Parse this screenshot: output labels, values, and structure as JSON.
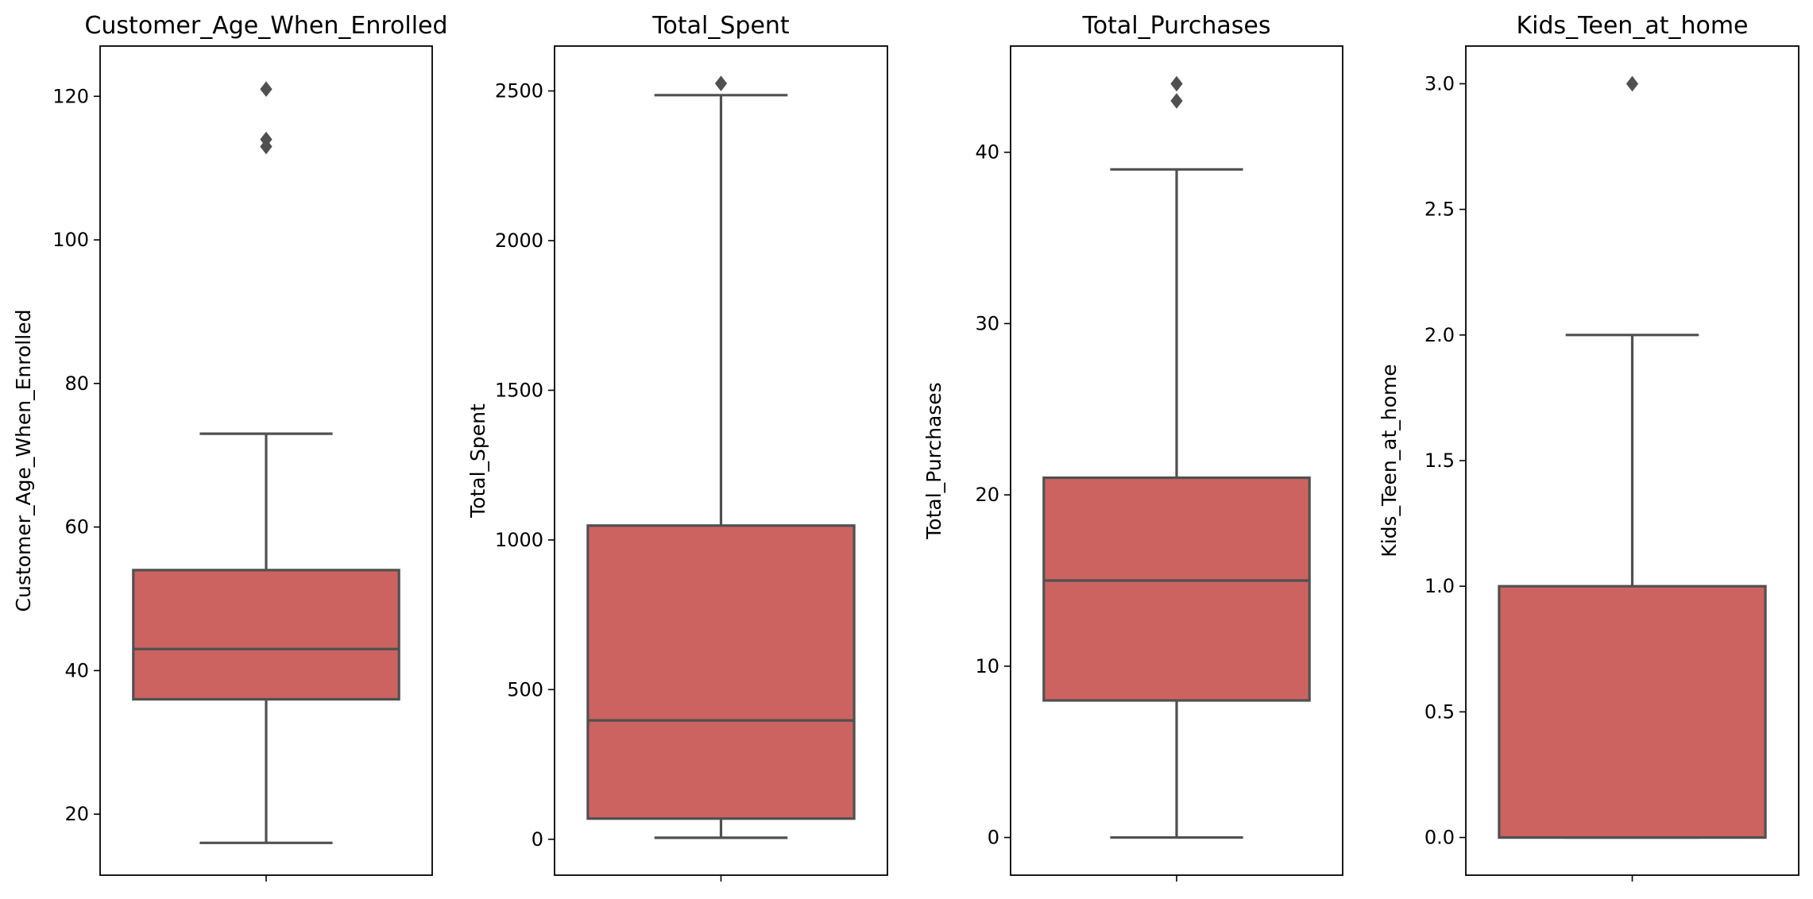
{
  "chart_data": [
    {
      "type": "boxplot",
      "title": "Customer_Age_When_Enrolled",
      "xlabel": "",
      "ylabel": "Customer_Age_When_Enrolled",
      "ylim": [
        11.5,
        127
      ],
      "yticks": [
        20,
        40,
        60,
        80,
        100,
        120
      ],
      "ytick_labels": [
        "20",
        "40",
        "60",
        "80",
        "100",
        "120"
      ],
      "box": {
        "whisker_low": 16,
        "q1": 36,
        "median": 43,
        "q3": 54,
        "whisker_high": 73
      },
      "outliers": [
        113,
        114,
        121
      ],
      "grid": false,
      "color": "#cd6360"
    },
    {
      "type": "boxplot",
      "title": "Total_Spent",
      "xlabel": "",
      "ylabel": "Total_Spent",
      "ylim": [
        -120,
        2650
      ],
      "yticks": [
        0,
        500,
        1000,
        1500,
        2000,
        2500
      ],
      "ytick_labels": [
        "0",
        "500",
        "1000",
        "1500",
        "2000",
        "2500"
      ],
      "box": {
        "whisker_low": 5,
        "q1": 69,
        "median": 397,
        "q3": 1048,
        "whisker_high": 2486
      },
      "outliers": [
        2525
      ],
      "grid": false,
      "color": "#cd6360"
    },
    {
      "type": "boxplot",
      "title": "Total_Purchases",
      "xlabel": "",
      "ylabel": "Total_Purchases",
      "ylim": [
        -2.2,
        46.2
      ],
      "yticks": [
        0,
        10,
        20,
        30,
        40
      ],
      "ytick_labels": [
        "0",
        "10",
        "20",
        "30",
        "40"
      ],
      "box": {
        "whisker_low": 0,
        "q1": 8,
        "median": 15,
        "q3": 21,
        "whisker_high": 39
      },
      "outliers": [
        43,
        44
      ],
      "grid": false,
      "color": "#cd6360"
    },
    {
      "type": "boxplot",
      "title": "Kids_Teen_at_home",
      "xlabel": "",
      "ylabel": "Kids_Teen_at_home",
      "ylim": [
        -0.15,
        3.15
      ],
      "yticks": [
        0,
        0.5,
        1,
        1.5,
        2,
        2.5,
        3
      ],
      "ytick_labels": [
        "0.0",
        "0.5",
        "1.0",
        "1.5",
        "2.0",
        "2.5",
        "3.0"
      ],
      "box": {
        "whisker_low": 0,
        "q1": 0,
        "median": 0,
        "q3": 1,
        "whisker_high": 2
      },
      "outliers": [
        3
      ],
      "grid": false,
      "color": "#cd6360"
    }
  ]
}
